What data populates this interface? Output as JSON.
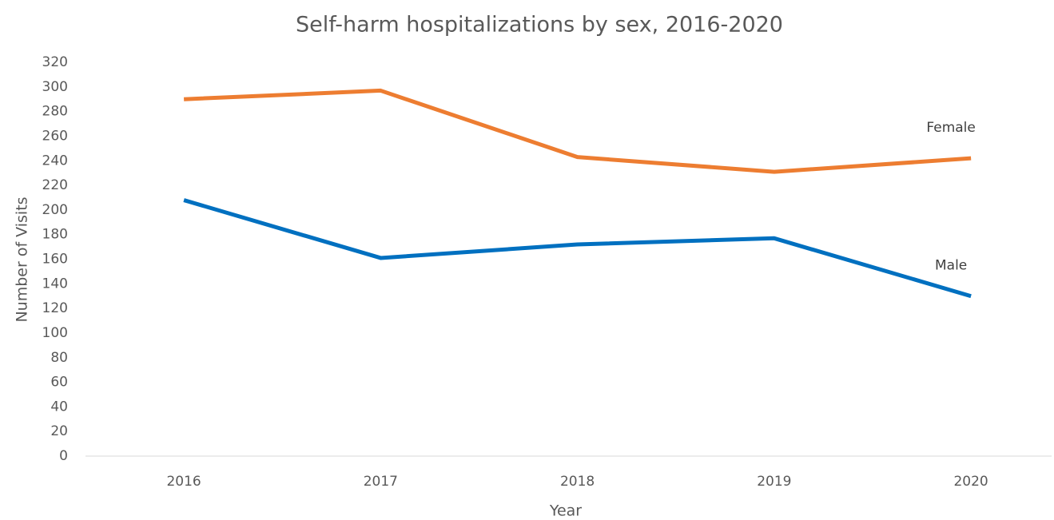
{
  "chart_data": {
    "type": "line",
    "title": "Self-harm hospitalizations by sex, 2016-2020",
    "x_label": "Year",
    "y_label": "Number of Visits",
    "categories": [
      "2016",
      "2017",
      "2018",
      "2019",
      "2020"
    ],
    "series": [
      {
        "name": "Female",
        "color": "#ed7d31",
        "values": [
          290,
          297,
          243,
          231,
          242
        ]
      },
      {
        "name": "Male",
        "color": "#0070c0",
        "values": [
          208,
          161,
          172,
          177,
          130
        ]
      }
    ],
    "ylim": [
      0,
      320
    ],
    "yticks": [
      0,
      20,
      40,
      60,
      80,
      100,
      120,
      140,
      160,
      180,
      200,
      220,
      240,
      260,
      280,
      300,
      320
    ],
    "grid": false
  }
}
